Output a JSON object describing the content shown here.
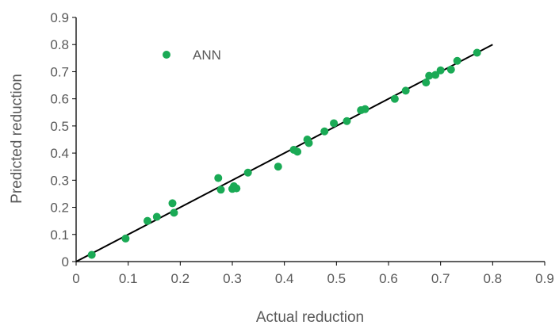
{
  "chart_data": {
    "type": "scatter",
    "title": "",
    "xlabel": "Actual reduction",
    "ylabel": "Predicted reduction",
    "xlim": [
      0,
      0.9
    ],
    "ylim": [
      0,
      0.9
    ],
    "xticks": [
      "0",
      "0.1",
      "0.2",
      "0.3",
      "0.4",
      "0.5",
      "0.6",
      "0.7",
      "0.8",
      "0.9"
    ],
    "yticks": [
      "0",
      "0.1",
      "0.2",
      "0.3",
      "0.4",
      "0.5",
      "0.6",
      "0.7",
      "0.8",
      "0.9"
    ],
    "grid": false,
    "legend_position": "top-left",
    "series": [
      {
        "name": "ANN",
        "color": "#1aaa55",
        "points": [
          [
            0.03,
            0.025
          ],
          [
            0.095,
            0.085
          ],
          [
            0.137,
            0.15
          ],
          [
            0.155,
            0.165
          ],
          [
            0.185,
            0.215
          ],
          [
            0.188,
            0.18
          ],
          [
            0.273,
            0.308
          ],
          [
            0.278,
            0.265
          ],
          [
            0.3,
            0.268
          ],
          [
            0.303,
            0.278
          ],
          [
            0.308,
            0.27
          ],
          [
            0.33,
            0.328
          ],
          [
            0.388,
            0.35
          ],
          [
            0.418,
            0.412
          ],
          [
            0.425,
            0.405
          ],
          [
            0.444,
            0.45
          ],
          [
            0.447,
            0.437
          ],
          [
            0.477,
            0.48
          ],
          [
            0.495,
            0.51
          ],
          [
            0.52,
            0.518
          ],
          [
            0.547,
            0.558
          ],
          [
            0.555,
            0.562
          ],
          [
            0.612,
            0.6
          ],
          [
            0.633,
            0.63
          ],
          [
            0.672,
            0.66
          ],
          [
            0.678,
            0.685
          ],
          [
            0.69,
            0.688
          ],
          [
            0.7,
            0.705
          ],
          [
            0.72,
            0.708
          ],
          [
            0.732,
            0.74
          ],
          [
            0.77,
            0.77
          ]
        ]
      }
    ],
    "reference_line": {
      "from": [
        0,
        0
      ],
      "to": [
        0.8,
        0.8
      ],
      "color": "#000000"
    }
  }
}
